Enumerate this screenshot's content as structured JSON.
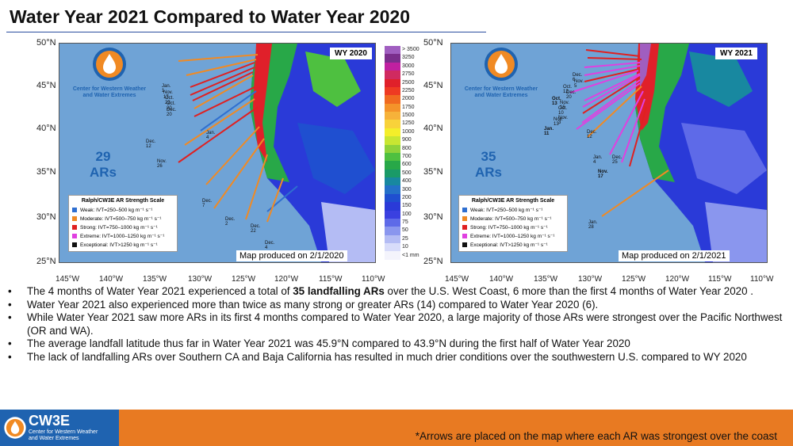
{
  "title": "Water Year 2021 Compared to Water Year 2020",
  "org": {
    "name_line1": "Center for Western Weather",
    "name_line2": "and Water Extremes",
    "short": "CW3E"
  },
  "lat_labels": [
    "50°N",
    "45°N",
    "40°N",
    "35°N",
    "30°N",
    "25°N"
  ],
  "lon_labels": [
    "145°W",
    "140°W",
    "135°W",
    "130°W",
    "125°W",
    "120°W",
    "115°W",
    "110°W"
  ],
  "colorbar": {
    "labels": [
      "> 3500",
      "3250",
      "3000",
      "2750",
      "2500",
      "2250",
      "2000",
      "1750",
      "1500",
      "1250",
      "1000",
      "900",
      "800",
      "700",
      "600",
      "500",
      "400",
      "300",
      "200",
      "150",
      "100",
      "75",
      "50",
      "25",
      "10",
      "<1 mm"
    ],
    "colors": [
      "#a05ec0",
      "#7a2e8c",
      "#c020a0",
      "#d02a60",
      "#e0202a",
      "#ee3a22",
      "#f06a20",
      "#f4932a",
      "#f6b23a",
      "#f8d23a",
      "#f4ee2a",
      "#c8e632",
      "#8ed23a",
      "#4ec040",
      "#28a848",
      "#1a9a68",
      "#1888a0",
      "#2470c8",
      "#1f4fd0",
      "#2a3ad8",
      "#3a40e0",
      "#5e6ae8",
      "#8a96ee",
      "#b4bcf4",
      "#d8dcfa",
      "#f4f4fc"
    ]
  },
  "legend": {
    "title": "Ralph/CW3E AR Strength Scale",
    "items": [
      {
        "label": "Weak: IVT=250–500 kg m⁻¹ s⁻¹",
        "color": "#2f6fd0"
      },
      {
        "label": "Moderate: IVT=500–750 kg m⁻¹ s⁻¹",
        "color": "#f08a24"
      },
      {
        "label": "Strong: IVT=750–1000 kg m⁻¹ s⁻¹",
        "color": "#e02020"
      },
      {
        "label": "Extreme: IVT=1000–1250 kg m⁻¹ s⁻¹",
        "color": "#e040e0"
      },
      {
        "label": "Exceptional: IVT>1250 kg m⁻¹ s⁻¹",
        "color": "#111111"
      }
    ]
  },
  "maps": [
    {
      "wy": "WY 2020",
      "count": "29",
      "count_unit": "ARs",
      "produced": "Map produced on 2/1/2020",
      "dates": [
        "Jan. 1",
        "Nov. 17",
        "Oct. 22",
        "Oct. 20",
        "Dec. 20",
        "Jan. 4",
        "Dec. 12",
        "Nov. 26",
        "Dec. 7",
        "Dec. 2",
        "Dec. 22",
        "Dec. 4"
      ]
    },
    {
      "wy": "WY 2021",
      "count": "35",
      "count_unit": "ARs",
      "produced": "Map produced on 2/1/2021",
      "dates": [
        "Dec. 6",
        "Nov. 5",
        "Oct. 12",
        "Dec. 20",
        "Oct. 13",
        "Nov. 15",
        "Oct. 10 Nov. 3",
        "Nov. 13",
        "Jan. 11",
        "Dec. 12",
        "Jan. 4",
        "Dec. 25",
        "Nov. 17",
        "Jan. 28"
      ]
    }
  ],
  "bullets": [
    {
      "pre": "The 4 months of Water Year 2021 experienced a total of ",
      "bold": "35 landfalling ARs",
      "post": " over the U.S. West Coast, 6 more than the first 4 months of Water Year 2020 ."
    },
    {
      "pre": "Water Year 2021 also experienced more than twice as many strong or greater ARs (14) compared to Water Year 2020 (6).",
      "bold": "",
      "post": ""
    },
    {
      "pre": "While Water Year 2021 saw more ARs in its first 4 months compared to Water Year 2020, a large majority of those ARs were strongest over the Pacific Northwest (OR and WA).",
      "bold": "",
      "post": ""
    },
    {
      "pre": "The average landfall latitude thus far in Water Year 2021 was 45.9°N compared to 43.9°N during the first half of Water Year 2020",
      "bold": "",
      "post": ""
    },
    {
      "pre": "The lack of landfalling ARs over Southern CA and Baja California has resulted in much drier conditions over the southwestern U.S. compared to WY 2020",
      "bold": "",
      "post": ""
    }
  ],
  "footer_note": "*Arrows are placed on the map where each AR was strongest over the coast"
}
